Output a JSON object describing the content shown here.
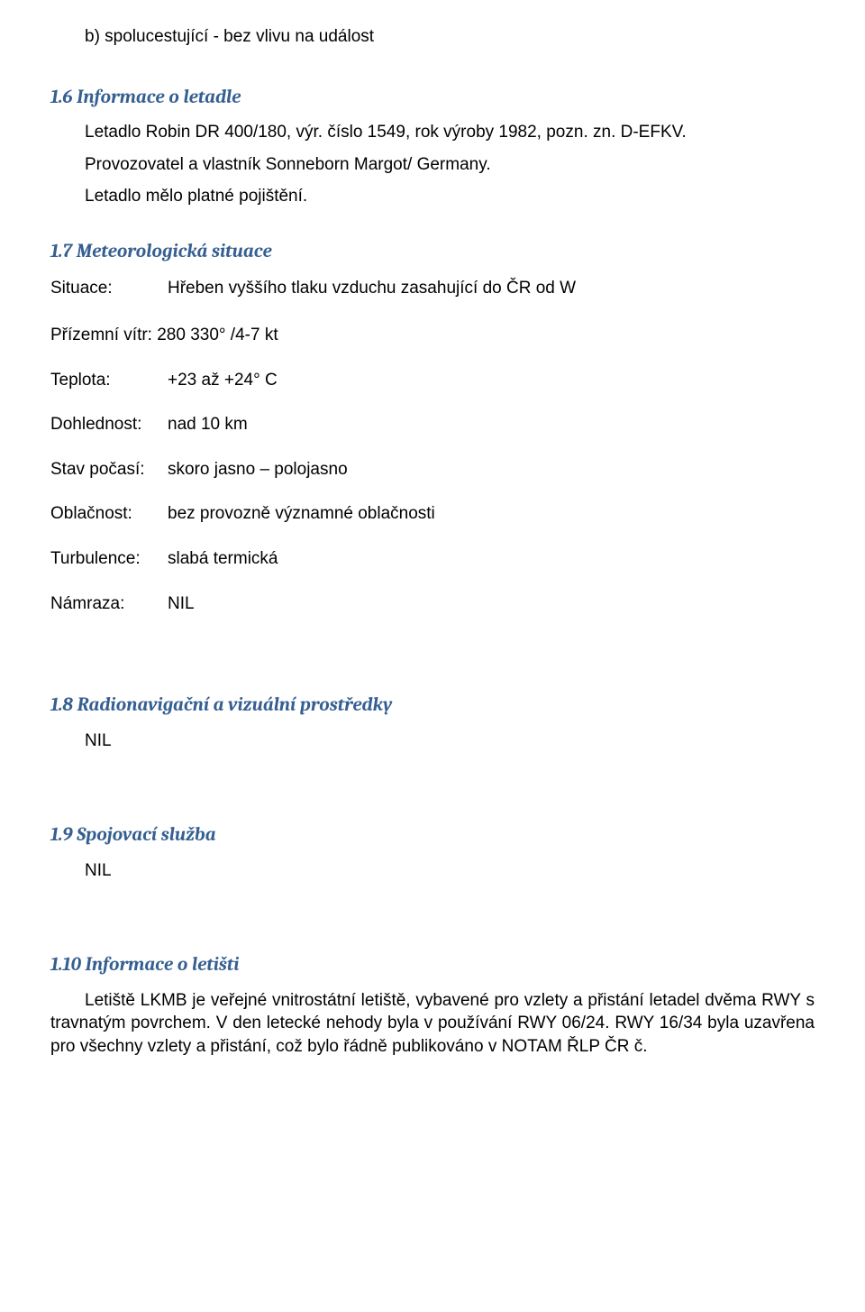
{
  "intro": {
    "line_b": "b) spolucestující - bez vlivu na událost"
  },
  "s16": {
    "heading": "1.6 Informace o letadle",
    "p1": "Letadlo Robin DR 400/180, výr. číslo 1549, rok výroby 1982, pozn. zn. D-EFKV.",
    "p2": "Provozovatel a vlastník Sonneborn Margot/ Germany.",
    "p3": "Letadlo mělo platné pojištění."
  },
  "s17": {
    "heading": "1.7 Meteorologická situace",
    "situace_label": "Situace:",
    "situace_value": "Hřeben vyššího tlaku vzduchu zasahující do ČR od W",
    "prizemni": "Přízemní vítr: 280 330° /4-7 kt",
    "rows": [
      {
        "label": "Teplota:",
        "value": "+23 až +24° C"
      },
      {
        "label": "Dohlednost:",
        "value": "nad 10 km"
      },
      {
        "label": "Stav počasí:",
        "value": "skoro jasno – polojasno"
      },
      {
        "label": "Oblačnost:",
        "value": "bez provozně významné oblačnosti"
      },
      {
        "label": "Turbulence:",
        "value": "slabá termická"
      },
      {
        "label": "Námraza:",
        "value": "NIL"
      }
    ]
  },
  "s18": {
    "heading": "1.8 Radionavigační a vizuální prostředky",
    "body": "NIL"
  },
  "s19": {
    "heading": "1.9 Spojovací služba",
    "body": "NIL"
  },
  "s110": {
    "heading": "1.10 Informace o letišti",
    "body": "Letiště LKMB je veřejné vnitrostátní letiště, vybavené pro vzlety a přistání letadel dvěma RWY s travnatým povrchem. V den letecké nehody byla v používání RWY 06/24. RWY 16/34 byla uzavřena pro všechny vzlety a přistání, což bylo řádně publikováno v NOTAM ŘLP ČR č."
  }
}
